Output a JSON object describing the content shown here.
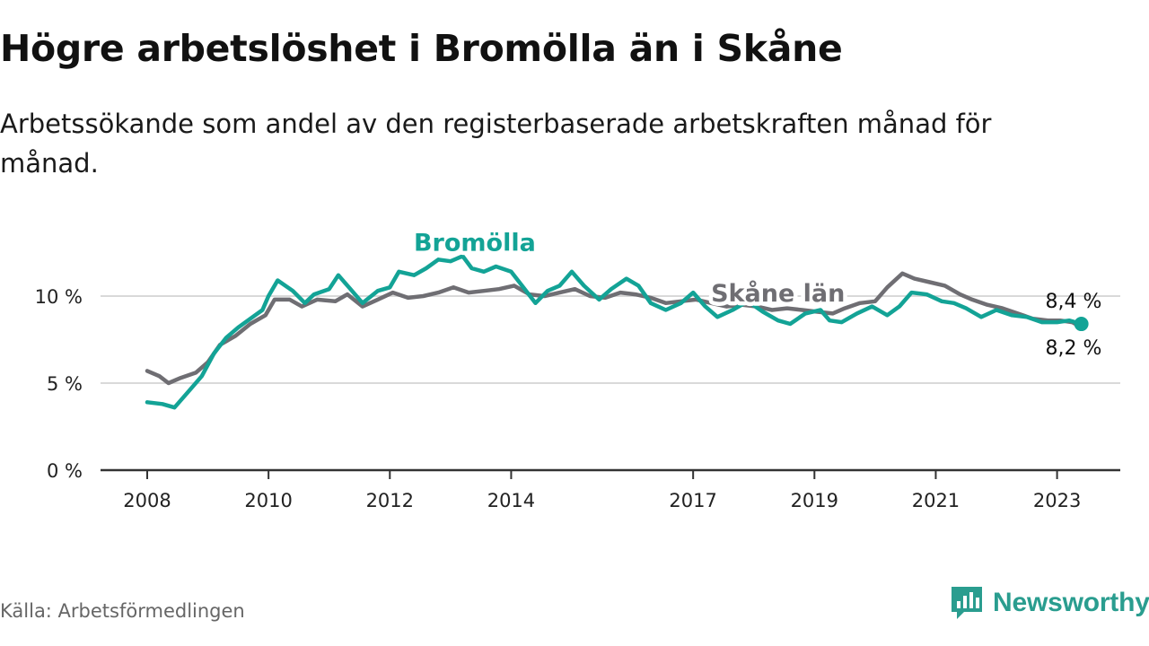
{
  "title": "Högre arbetslöshet i Bromölla än i Skåne",
  "subtitle": "Arbetssökande som andel av den registerbaserade arbetskraften månad för månad.",
  "source": "Källa: Arbetsförmedlingen",
  "brand": {
    "name": "Newsworthy",
    "icon": "newsworthy-logo-icon",
    "color": "#2a9d8f"
  },
  "colors": {
    "bromolla": "#13a396",
    "skane": "#6f6e73",
    "grid": "#d9d9d9",
    "axis": "#333333"
  },
  "chart_data": {
    "type": "line",
    "title": "Högre arbetslöshet i Bromölla än i Skåne",
    "xlabel": "",
    "ylabel": "",
    "xlim": [
      2008,
      2024
    ],
    "ylim": [
      0,
      13
    ],
    "grid": true,
    "x_ticks": [
      {
        "value": 2008,
        "label": "2008"
      },
      {
        "value": 2010,
        "label": "2010"
      },
      {
        "value": 2012,
        "label": "2012"
      },
      {
        "value": 2014,
        "label": "2014"
      },
      {
        "value": 2017,
        "label": "2017"
      },
      {
        "value": 2019,
        "label": "2019"
      },
      {
        "value": 2021,
        "label": "2021"
      },
      {
        "value": 2023,
        "label": "2023"
      }
    ],
    "y_ticks": [
      {
        "value": 0,
        "label": "0 %"
      },
      {
        "value": 5,
        "label": "5 %"
      },
      {
        "value": 10,
        "label": "10 %"
      }
    ],
    "series": [
      {
        "name": "Bromölla",
        "color": "#13a396",
        "end_label": "8,4 %",
        "points": [
          [
            2008.0,
            3.9
          ],
          [
            2008.25,
            3.8
          ],
          [
            2008.45,
            3.6
          ],
          [
            2008.7,
            4.6
          ],
          [
            2008.9,
            5.4
          ],
          [
            2009.1,
            6.7
          ],
          [
            2009.3,
            7.6
          ],
          [
            2009.5,
            8.2
          ],
          [
            2009.7,
            8.7
          ],
          [
            2009.9,
            9.2
          ],
          [
            2010.0,
            10.0
          ],
          [
            2010.15,
            10.9
          ],
          [
            2010.4,
            10.3
          ],
          [
            2010.6,
            9.6
          ],
          [
            2010.75,
            10.1
          ],
          [
            2011.0,
            10.4
          ],
          [
            2011.15,
            11.2
          ],
          [
            2011.35,
            10.4
          ],
          [
            2011.55,
            9.6
          ],
          [
            2011.8,
            10.3
          ],
          [
            2012.0,
            10.5
          ],
          [
            2012.15,
            11.4
          ],
          [
            2012.4,
            11.2
          ],
          [
            2012.6,
            11.6
          ],
          [
            2012.8,
            12.1
          ],
          [
            2013.0,
            12.0
          ],
          [
            2013.2,
            12.3
          ],
          [
            2013.35,
            11.6
          ],
          [
            2013.55,
            11.4
          ],
          [
            2013.75,
            11.7
          ],
          [
            2014.0,
            11.4
          ],
          [
            2014.2,
            10.5
          ],
          [
            2014.4,
            9.6
          ],
          [
            2014.6,
            10.3
          ],
          [
            2014.8,
            10.6
          ],
          [
            2015.0,
            11.4
          ],
          [
            2015.2,
            10.6
          ],
          [
            2015.45,
            9.8
          ],
          [
            2015.65,
            10.4
          ],
          [
            2015.9,
            11.0
          ],
          [
            2016.1,
            10.6
          ],
          [
            2016.3,
            9.6
          ],
          [
            2016.55,
            9.2
          ],
          [
            2016.8,
            9.6
          ],
          [
            2017.0,
            10.2
          ],
          [
            2017.2,
            9.4
          ],
          [
            2017.4,
            8.8
          ],
          [
            2017.65,
            9.2
          ],
          [
            2017.9,
            9.7
          ],
          [
            2018.15,
            9.1
          ],
          [
            2018.4,
            8.6
          ],
          [
            2018.6,
            8.4
          ],
          [
            2018.85,
            9.0
          ],
          [
            2019.1,
            9.2
          ],
          [
            2019.25,
            8.6
          ],
          [
            2019.45,
            8.5
          ],
          [
            2019.7,
            9.0
          ],
          [
            2019.95,
            9.4
          ],
          [
            2020.2,
            8.9
          ],
          [
            2020.4,
            9.4
          ],
          [
            2020.6,
            10.2
          ],
          [
            2020.85,
            10.1
          ],
          [
            2021.1,
            9.7
          ],
          [
            2021.3,
            9.6
          ],
          [
            2021.5,
            9.3
          ],
          [
            2021.75,
            8.8
          ],
          [
            2022.0,
            9.2
          ],
          [
            2022.25,
            8.9
          ],
          [
            2022.5,
            8.8
          ],
          [
            2022.75,
            8.5
          ],
          [
            2023.0,
            8.5
          ],
          [
            2023.2,
            8.6
          ],
          [
            2023.4,
            8.4
          ]
        ]
      },
      {
        "name": "Skåne län",
        "color": "#6f6e73",
        "end_label": "8,2 %",
        "points": [
          [
            2008.0,
            5.7
          ],
          [
            2008.2,
            5.4
          ],
          [
            2008.35,
            5.0
          ],
          [
            2008.55,
            5.3
          ],
          [
            2008.8,
            5.6
          ],
          [
            2009.0,
            6.2
          ],
          [
            2009.2,
            7.2
          ],
          [
            2009.45,
            7.7
          ],
          [
            2009.7,
            8.4
          ],
          [
            2009.95,
            8.9
          ],
          [
            2010.1,
            9.8
          ],
          [
            2010.35,
            9.8
          ],
          [
            2010.55,
            9.4
          ],
          [
            2010.8,
            9.8
          ],
          [
            2011.1,
            9.7
          ],
          [
            2011.3,
            10.1
          ],
          [
            2011.55,
            9.4
          ],
          [
            2011.8,
            9.8
          ],
          [
            2012.05,
            10.2
          ],
          [
            2012.3,
            9.9
          ],
          [
            2012.55,
            10.0
          ],
          [
            2012.8,
            10.2
          ],
          [
            2013.05,
            10.5
          ],
          [
            2013.3,
            10.2
          ],
          [
            2013.55,
            10.3
          ],
          [
            2013.8,
            10.4
          ],
          [
            2014.05,
            10.6
          ],
          [
            2014.3,
            10.1
          ],
          [
            2014.55,
            10.0
          ],
          [
            2014.8,
            10.2
          ],
          [
            2015.05,
            10.4
          ],
          [
            2015.3,
            10.0
          ],
          [
            2015.55,
            9.9
          ],
          [
            2015.8,
            10.2
          ],
          [
            2016.05,
            10.1
          ],
          [
            2016.3,
            9.9
          ],
          [
            2016.55,
            9.6
          ],
          [
            2016.8,
            9.7
          ],
          [
            2017.05,
            9.8
          ],
          [
            2017.3,
            9.6
          ],
          [
            2017.55,
            9.4
          ],
          [
            2017.8,
            9.5
          ],
          [
            2018.05,
            9.4
          ],
          [
            2018.3,
            9.2
          ],
          [
            2018.55,
            9.3
          ],
          [
            2018.8,
            9.2
          ],
          [
            2019.05,
            9.1
          ],
          [
            2019.3,
            9.0
          ],
          [
            2019.5,
            9.3
          ],
          [
            2019.75,
            9.6
          ],
          [
            2020.0,
            9.7
          ],
          [
            2020.2,
            10.5
          ],
          [
            2020.45,
            11.3
          ],
          [
            2020.65,
            11.0
          ],
          [
            2020.9,
            10.8
          ],
          [
            2021.15,
            10.6
          ],
          [
            2021.4,
            10.1
          ],
          [
            2021.6,
            9.8
          ],
          [
            2021.85,
            9.5
          ],
          [
            2022.1,
            9.3
          ],
          [
            2022.35,
            9.0
          ],
          [
            2022.6,
            8.7
          ],
          [
            2022.85,
            8.6
          ],
          [
            2023.05,
            8.6
          ],
          [
            2023.25,
            8.5
          ],
          [
            2023.4,
            8.2
          ]
        ]
      }
    ],
    "annotations": [
      {
        "series": "Bromölla",
        "text": "Bromölla",
        "at": [
          2013.4,
          12.6
        ]
      },
      {
        "series": "Skåne län",
        "text": "Skåne län",
        "at": [
          2018.4,
          9.7
        ]
      }
    ]
  }
}
